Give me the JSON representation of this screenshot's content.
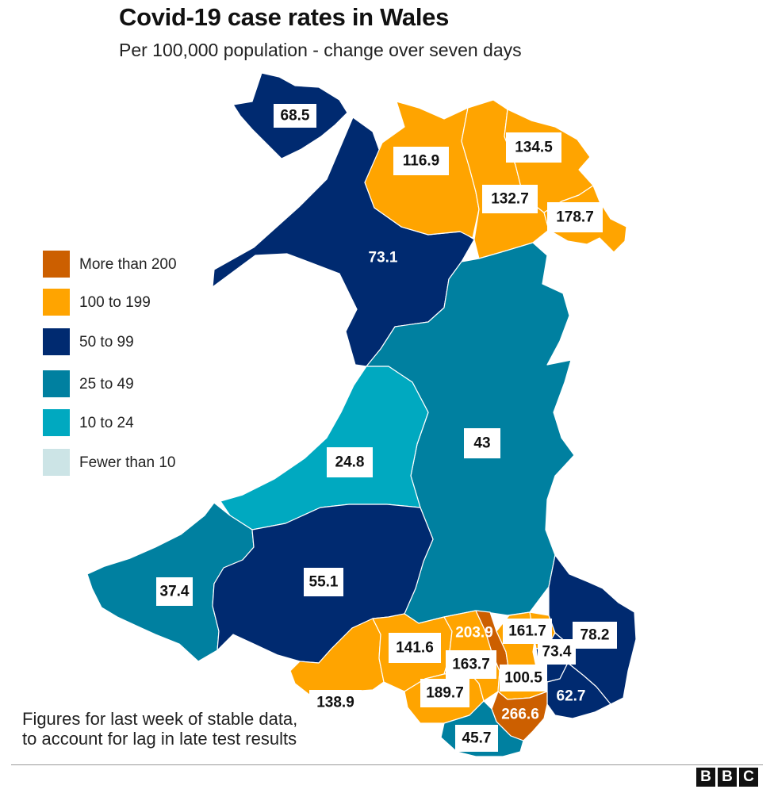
{
  "title": "Covid-19 case rates in Wales",
  "subtitle": "Per 100,000 population - change over seven days",
  "legend": [
    {
      "label": "More than 200",
      "color": "#cc5f00"
    },
    {
      "label": "100 to 199",
      "color": "#ffa400"
    },
    {
      "label": "50 to 99",
      "color": "#002a70"
    },
    {
      "label": "25 to 49",
      "color": "#0080a0"
    },
    {
      "label": "10 to 24",
      "color": "#00a9c0"
    },
    {
      "label": "Fewer than 10",
      "color": "#cce4e6"
    }
  ],
  "regions": [
    {
      "id": "anglesey",
      "value": "68.5"
    },
    {
      "id": "gwynedd",
      "value": "73.1"
    },
    {
      "id": "conwy",
      "value": "116.9"
    },
    {
      "id": "denbighshire",
      "value": "132.7"
    },
    {
      "id": "flintshire",
      "value": "134.5"
    },
    {
      "id": "wrexham",
      "value": "178.7"
    },
    {
      "id": "powys",
      "value": "43"
    },
    {
      "id": "ceredigion",
      "value": "24.8"
    },
    {
      "id": "pembrokeshire",
      "value": "37.4"
    },
    {
      "id": "carmarthenshire",
      "value": "55.1"
    },
    {
      "id": "swansea",
      "value": "138.9"
    },
    {
      "id": "neath-port-talbot",
      "value": "141.6"
    },
    {
      "id": "merthyr-tydfil",
      "value": "203.9"
    },
    {
      "id": "blaenau-gwent",
      "value": "161.7"
    },
    {
      "id": "monmouthshire",
      "value": "78.2"
    },
    {
      "id": "torfaen",
      "value": "73.4"
    },
    {
      "id": "rhondda-cynon-taf",
      "value": "163.7"
    },
    {
      "id": "caerphilly",
      "value": "100.5"
    },
    {
      "id": "bridgend",
      "value": "189.7"
    },
    {
      "id": "newport",
      "value": "62.7"
    },
    {
      "id": "cardiff",
      "value": "266.6"
    },
    {
      "id": "vale-of-glamorgan",
      "value": "45.7"
    }
  ],
  "footnote": [
    "Figures for last week of stable data,",
    "to account for lag in late test results"
  ],
  "logo": [
    "B",
    "B",
    "C"
  ]
}
